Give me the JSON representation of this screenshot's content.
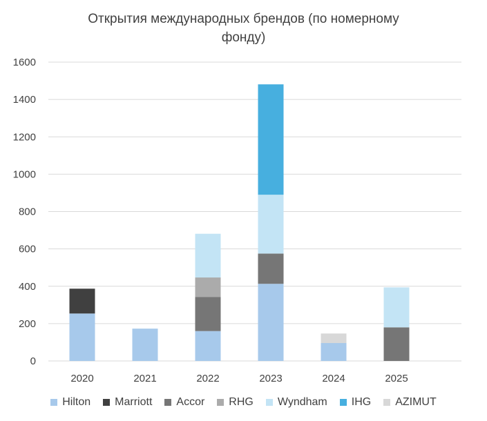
{
  "chart_data": {
    "type": "bar",
    "stacked": true,
    "title_lines": [
      "Открытия международных брендов (по номерному",
      "фонду)"
    ],
    "categories": [
      "2020",
      "2021",
      "2022",
      "2023",
      "2024",
      "2025"
    ],
    "ylim": [
      0,
      1600
    ],
    "yticks": [
      0,
      200,
      400,
      600,
      800,
      1000,
      1200,
      1400,
      1600
    ],
    "grid": true,
    "legend": "bottom",
    "series": [
      {
        "name": "Hilton",
        "color": "#A7C9EB",
        "values": [
          254,
          173,
          160,
          413,
          96,
          0
        ]
      },
      {
        "name": "Marriott",
        "color": "#404040",
        "values": [
          133,
          0,
          0,
          0,
          0,
          0
        ]
      },
      {
        "name": "Accor",
        "color": "#767676",
        "values": [
          0,
          0,
          183,
          162,
          0,
          180
        ]
      },
      {
        "name": "RHG",
        "color": "#ABABAB",
        "values": [
          0,
          0,
          104,
          0,
          0,
          0
        ]
      },
      {
        "name": "Wyndham",
        "color": "#C3E4F5",
        "values": [
          0,
          0,
          234,
          315,
          0,
          214
        ]
      },
      {
        "name": "IHG",
        "color": "#47AFDF",
        "values": [
          0,
          0,
          0,
          591,
          0,
          0
        ]
      },
      {
        "name": "AZIMUT",
        "color": "#D8D8D8",
        "values": [
          0,
          0,
          0,
          0,
          51,
          0
        ]
      }
    ]
  }
}
